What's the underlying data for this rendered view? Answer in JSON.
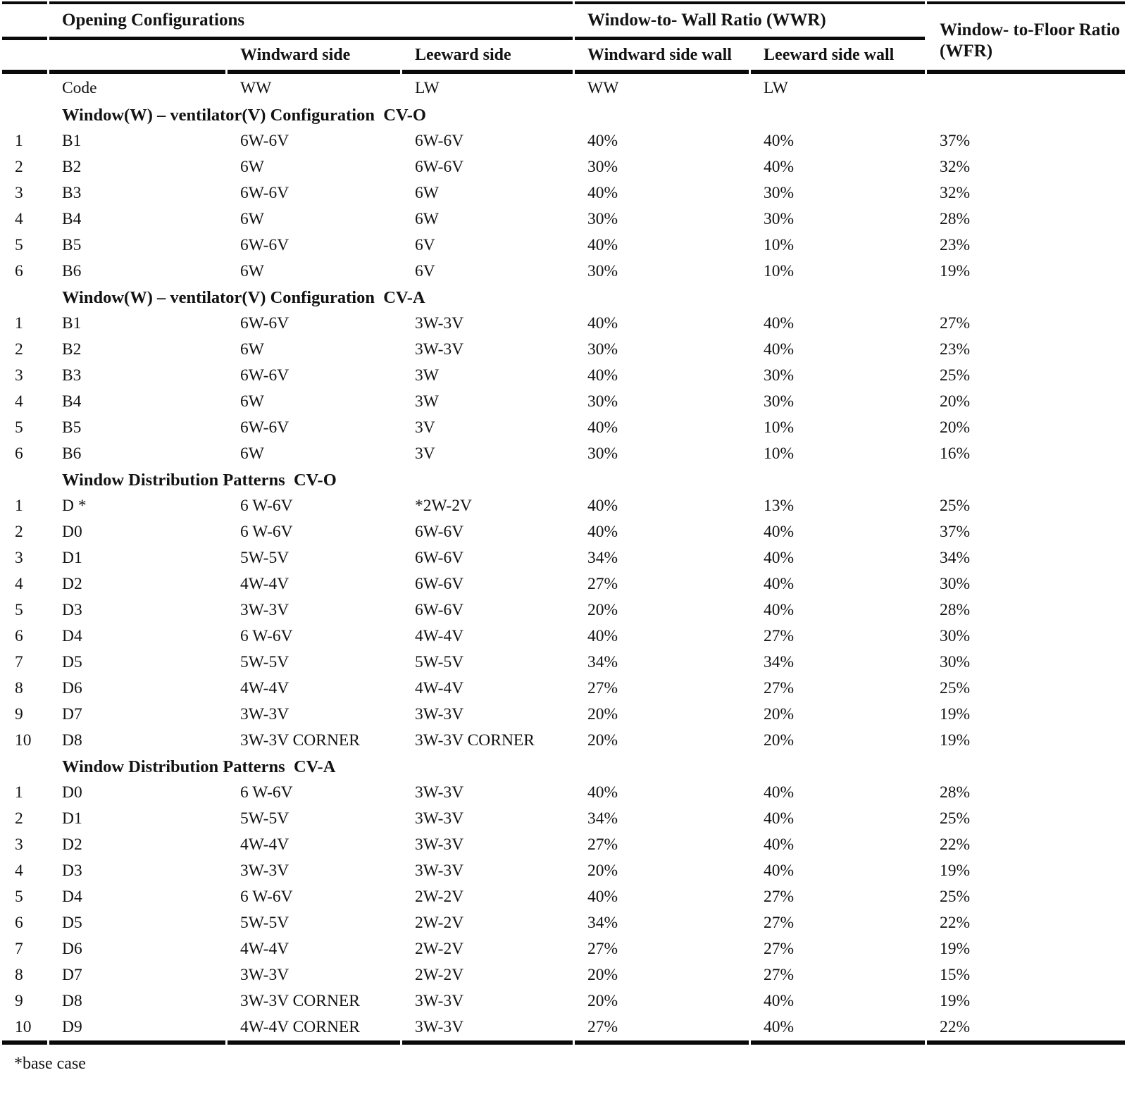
{
  "table": {
    "header": {
      "opening_configurations": "Opening Configurations",
      "wwr": "Window-to- Wall Ratio (WWR)",
      "wfr": "Window- to-Floor Ratio (WFR)",
      "sub": [
        "Windward side",
        "Leeward side",
        "Windward side wall",
        "Leeward side wall"
      ],
      "cols": [
        "Code",
        "WW",
        "LW",
        "WW",
        "LW"
      ]
    },
    "sections": [
      {
        "title": "Window(W) – ventilator(V) Configuration  CV-O",
        "rows": [
          [
            "1",
            "B1",
            "6W-6V",
            "6W-6V",
            "40%",
            "40%",
            "37%"
          ],
          [
            "2",
            "B2",
            "6W",
            "6W-6V",
            "30%",
            "40%",
            "32%"
          ],
          [
            "3",
            "B3",
            "6W-6V",
            "6W",
            "40%",
            "30%",
            "32%"
          ],
          [
            "4",
            "B4",
            "6W",
            "6W",
            "30%",
            "30%",
            "28%"
          ],
          [
            "5",
            "B5",
            "6W-6V",
            "6V",
            "40%",
            "10%",
            "23%"
          ],
          [
            "6",
            "B6",
            "6W",
            "6V",
            "30%",
            "10%",
            "19%"
          ]
        ]
      },
      {
        "title": "Window(W) – ventilator(V) Configuration  CV-A",
        "rows": [
          [
            "1",
            "B1",
            "6W-6V",
            "3W-3V",
            "40%",
            "40%",
            "27%"
          ],
          [
            "2",
            "B2",
            "6W",
            "3W-3V",
            "30%",
            "40%",
            "23%"
          ],
          [
            "3",
            "B3",
            "6W-6V",
            "3W",
            "40%",
            "30%",
            "25%"
          ],
          [
            "4",
            "B4",
            "6W",
            "3W",
            "30%",
            "30%",
            "20%"
          ],
          [
            "5",
            "B5",
            "6W-6V",
            "3V",
            "40%",
            "10%",
            "20%"
          ],
          [
            "6",
            "B6",
            "6W",
            "3V",
            "30%",
            "10%",
            "16%"
          ]
        ]
      },
      {
        "title": "Window Distribution Patterns  CV-O",
        "rows": [
          [
            "1",
            "D *",
            "6 W-6V",
            "*2W-2V",
            "40%",
            "13%",
            "25%"
          ],
          [
            "2",
            "D0",
            "6 W-6V",
            "6W-6V",
            "40%",
            "40%",
            "37%"
          ],
          [
            "3",
            "D1",
            "5W-5V",
            "6W-6V",
            "34%",
            "40%",
            "34%"
          ],
          [
            "4",
            "D2",
            "4W-4V",
            "6W-6V",
            "27%",
            "40%",
            "30%"
          ],
          [
            "5",
            "D3",
            "3W-3V",
            "6W-6V",
            "20%",
            "40%",
            "28%"
          ],
          [
            "6",
            "D4",
            "6 W-6V",
            "4W-4V",
            "40%",
            "27%",
            "30%"
          ],
          [
            "7",
            "D5",
            "5W-5V",
            "5W-5V",
            "34%",
            "34%",
            "30%"
          ],
          [
            "8",
            "D6",
            "4W-4V",
            "4W-4V",
            "27%",
            "27%",
            "25%"
          ],
          [
            "9",
            "D7",
            "3W-3V",
            "3W-3V",
            "20%",
            "20%",
            "19%"
          ],
          [
            "10",
            "D8",
            "3W-3V CORNER",
            "3W-3V CORNER",
            "20%",
            "20%",
            "19%"
          ]
        ]
      },
      {
        "title": "Window Distribution Patterns  CV-A",
        "rows": [
          [
            "1",
            "D0",
            "6 W-6V",
            "3W-3V",
            "40%",
            "40%",
            "28%"
          ],
          [
            "2",
            "D1",
            "5W-5V",
            "3W-3V",
            "34%",
            "40%",
            "25%"
          ],
          [
            "3",
            "D2",
            "4W-4V",
            "3W-3V",
            "27%",
            "40%",
            "22%"
          ],
          [
            "4",
            "D3",
            "3W-3V",
            "3W-3V",
            "20%",
            "40%",
            "19%"
          ],
          [
            "5",
            "D4",
            "6 W-6V",
            "2W-2V",
            "40%",
            "27%",
            "25%"
          ],
          [
            "6",
            "D5",
            "5W-5V",
            "2W-2V",
            "34%",
            "27%",
            "22%"
          ],
          [
            "7",
            "D6",
            "4W-4V",
            "2W-2V",
            "27%",
            "27%",
            "19%"
          ],
          [
            "8",
            "D7",
            "3W-3V",
            "2W-2V",
            "20%",
            "27%",
            "15%"
          ],
          [
            "9",
            "D8",
            "3W-3V CORNER",
            "3W-3V",
            "20%",
            "40%",
            "19%"
          ],
          [
            "10",
            "D9",
            "4W-4V CORNER",
            "3W-3V",
            "27%",
            "40%",
            "22%"
          ]
        ]
      }
    ],
    "footnote": "*base case"
  }
}
